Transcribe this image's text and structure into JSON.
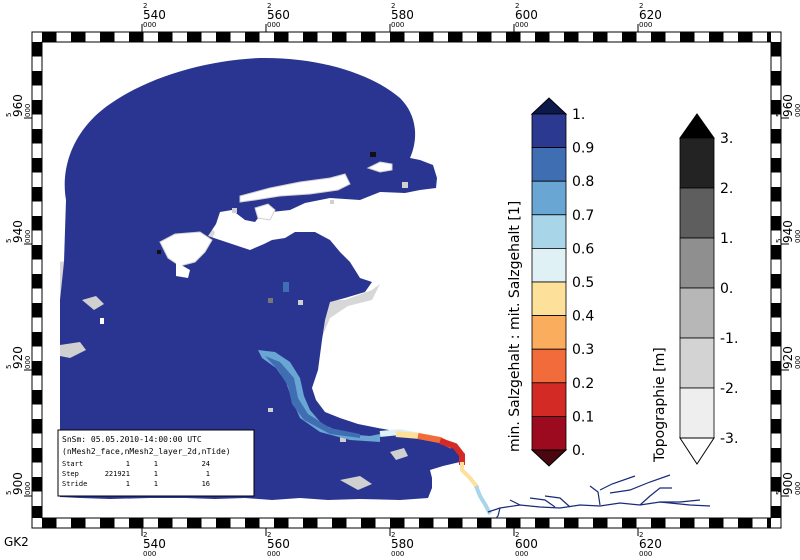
{
  "map": {
    "projection_label": "GK2",
    "x_ticks": [
      {
        "top": "2",
        "main": "540",
        "sub": "000"
      },
      {
        "top": "2",
        "main": "560",
        "sub": "000"
      },
      {
        "top": "2",
        "main": "580",
        "sub": "000"
      },
      {
        "top": "2",
        "main": "600",
        "sub": "000"
      },
      {
        "top": "2",
        "main": "620",
        "sub": "000"
      }
    ],
    "y_ticks": [
      {
        "top": "5",
        "main": "960",
        "sub": "000"
      },
      {
        "top": "5",
        "main": "940",
        "sub": "000"
      },
      {
        "top": "5",
        "main": "920",
        "sub": "000"
      },
      {
        "top": "5",
        "main": "900",
        "sub": "000"
      }
    ]
  },
  "info_box": {
    "line1": "SnSm: 05.05.2010-14:00:00 UTC",
    "line2": "(nMesh2_face,nMesh2_layer_2d,nTide)",
    "rows": [
      {
        "label": "Start",
        "c1": "1",
        "c2": "1",
        "c3": "24"
      },
      {
        "label": "Step",
        "c1": "221921",
        "c2": "1",
        "c3": "1"
      },
      {
        "label": "Stride",
        "c1": "1",
        "c2": "1",
        "c3": "16"
      }
    ]
  },
  "colorbar_salinity": {
    "title": "min. Salzgehalt : mit. Salzgehalt [1]",
    "labels": [
      "1.",
      "0.9",
      "0.8",
      "0.7",
      "0.6",
      "0.5",
      "0.4",
      "0.3",
      "0.2",
      "0.1",
      "0."
    ],
    "colors": [
      "#2b3990",
      "#3f6eb3",
      "#6aa6d3",
      "#a8d6e8",
      "#dff1f4",
      "#fde19a",
      "#fbad5e",
      "#f26c3b",
      "#d42a26",
      "#9c0a1f"
    ],
    "over_color": "#0b1a4a",
    "under_color": "#4a0710"
  },
  "colorbar_topo": {
    "title": "Topographie [m]",
    "labels": [
      "3.",
      "2.",
      "1.",
      "0.",
      "-1.",
      "-2.",
      "-3."
    ],
    "colors": [
      "#232323",
      "#5e5e5e",
      "#8f8f8f",
      "#b7b7b7",
      "#d3d3d3",
      "#eeeeee"
    ],
    "over_color": "#000000",
    "under_color": "#ffffff"
  },
  "colors": {
    "water": "#2a3592",
    "land": "#d7d7d7",
    "frame_black": "#000000"
  }
}
